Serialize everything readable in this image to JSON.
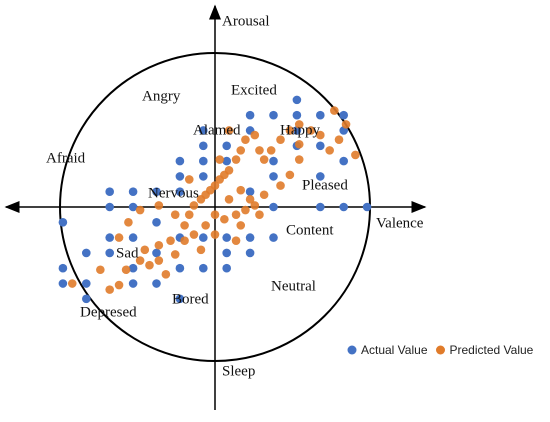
{
  "chart_data": {
    "type": "scatter",
    "xlabel": "Valence",
    "ylabel": "Arousal",
    "xlim": [
      -9,
      9
    ],
    "ylim": [
      -13.2,
      13.2
    ],
    "legend": "bottom-right",
    "annotations": [
      "Sleep",
      "Angry",
      "Excited",
      "Alamed",
      "Happy",
      "Afraid",
      "Nervous",
      "Pleased",
      "Content",
      "Sad",
      "Neutral",
      "Bored",
      "Depresed"
    ],
    "series": [
      {
        "name": "Actual Value",
        "color": "#4472c4",
        "x": [
          -6.5,
          -6.5,
          -6.5,
          -5.5,
          -5.5,
          -5.5,
          -4.5,
          -4.5,
          -4.5,
          -4.5,
          -3.5,
          -3.5,
          -3.5,
          -3.5,
          -3.5,
          -2.5,
          -2.5,
          -2.5,
          -2.5,
          -1.5,
          -1.5,
          -1.5,
          -1.5,
          -1.5,
          -1.5,
          -0.5,
          -0.5,
          -0.5,
          -0.5,
          -0.5,
          -0.5,
          0.5,
          0.5,
          0.5,
          0.5,
          0.5,
          1.5,
          1.5,
          1.5,
          1.5,
          2.5,
          2.5,
          2.5,
          2.5,
          3.5,
          3.5,
          3.5,
          3.5,
          4.5,
          4.5,
          4.5,
          4.5,
          5.5,
          5.5,
          5.5,
          6.5,
          5.5,
          1.5,
          2.5
        ],
        "values": [
          -1,
          -4,
          -5,
          -5,
          -6,
          -3,
          1,
          0,
          -2,
          -3,
          1,
          0,
          -2,
          -4,
          -5,
          1,
          -1,
          -3,
          -5,
          3,
          2,
          1,
          -2,
          -4,
          -6,
          5,
          4,
          3,
          2,
          -2,
          -4,
          4,
          3,
          -2,
          -3,
          -4,
          -2,
          -3,
          5,
          6,
          6,
          3,
          2,
          -2,
          7,
          6,
          5,
          4,
          6,
          4,
          2,
          0,
          6,
          5,
          0,
          0,
          3,
          1,
          0
        ]
      },
      {
        "name": "Predicted Value",
        "color": "#e07b2a",
        "x": [
          -3.7,
          -4.1,
          -4.9,
          -6.1,
          -4.1,
          -3.0,
          -2.8,
          -2.4,
          -2.1,
          -1.7,
          -1.3,
          -1.1,
          -0.9,
          -0.6,
          -0.4,
          -0.2,
          0,
          0.2,
          0.4,
          0.6,
          0.9,
          1.1,
          1.3,
          1.7,
          1.9,
          2.1,
          2.4,
          2.8,
          3.2,
          3.6,
          4.1,
          4.5,
          4.9,
          5.3,
          5.1,
          5.6,
          6.0,
          3.6,
          3.2,
          2.8,
          2.1,
          1.7,
          1.3,
          0.9,
          0.4,
          0,
          -0.4,
          -0.9,
          -1.3,
          -1.9,
          -2.4,
          -3.2,
          -3.8,
          -4.5,
          -3.2,
          -1.7,
          0.6,
          1.1,
          1.5,
          1.9,
          1.1,
          0,
          0.2,
          0.6,
          -0.6,
          -2.4,
          -1.1,
          3.6,
          0.9
        ],
        "values": [
          -1.0,
          -2.0,
          -4.1,
          -5.0,
          -5.1,
          -2.8,
          -3.8,
          -3.5,
          -4.4,
          -3.1,
          -1.2,
          -0.5,
          0.1,
          0.5,
          0.8,
          1.1,
          1.4,
          1.8,
          2.1,
          2.4,
          3.1,
          3.7,
          4.4,
          4.7,
          3.7,
          3.1,
          3.7,
          4.4,
          5.0,
          5.4,
          5.0,
          4.7,
          3.7,
          4.4,
          6.3,
          5.4,
          3.4,
          3.1,
          2.1,
          1.4,
          0.8,
          0.1,
          -0.2,
          -0.5,
          -0.8,
          -0.5,
          -1.2,
          -1.8,
          -2.2,
          -2.2,
          -2.5,
          -3.5,
          -4.1,
          -5.4,
          -0.2,
          -0.5,
          0.5,
          1.1,
          0.5,
          -0.5,
          -1.2,
          -1.8,
          3.1,
          5.0,
          -2.8,
          0.1,
          1.8,
          4.1,
          -2.2
        ]
      }
    ]
  }
}
